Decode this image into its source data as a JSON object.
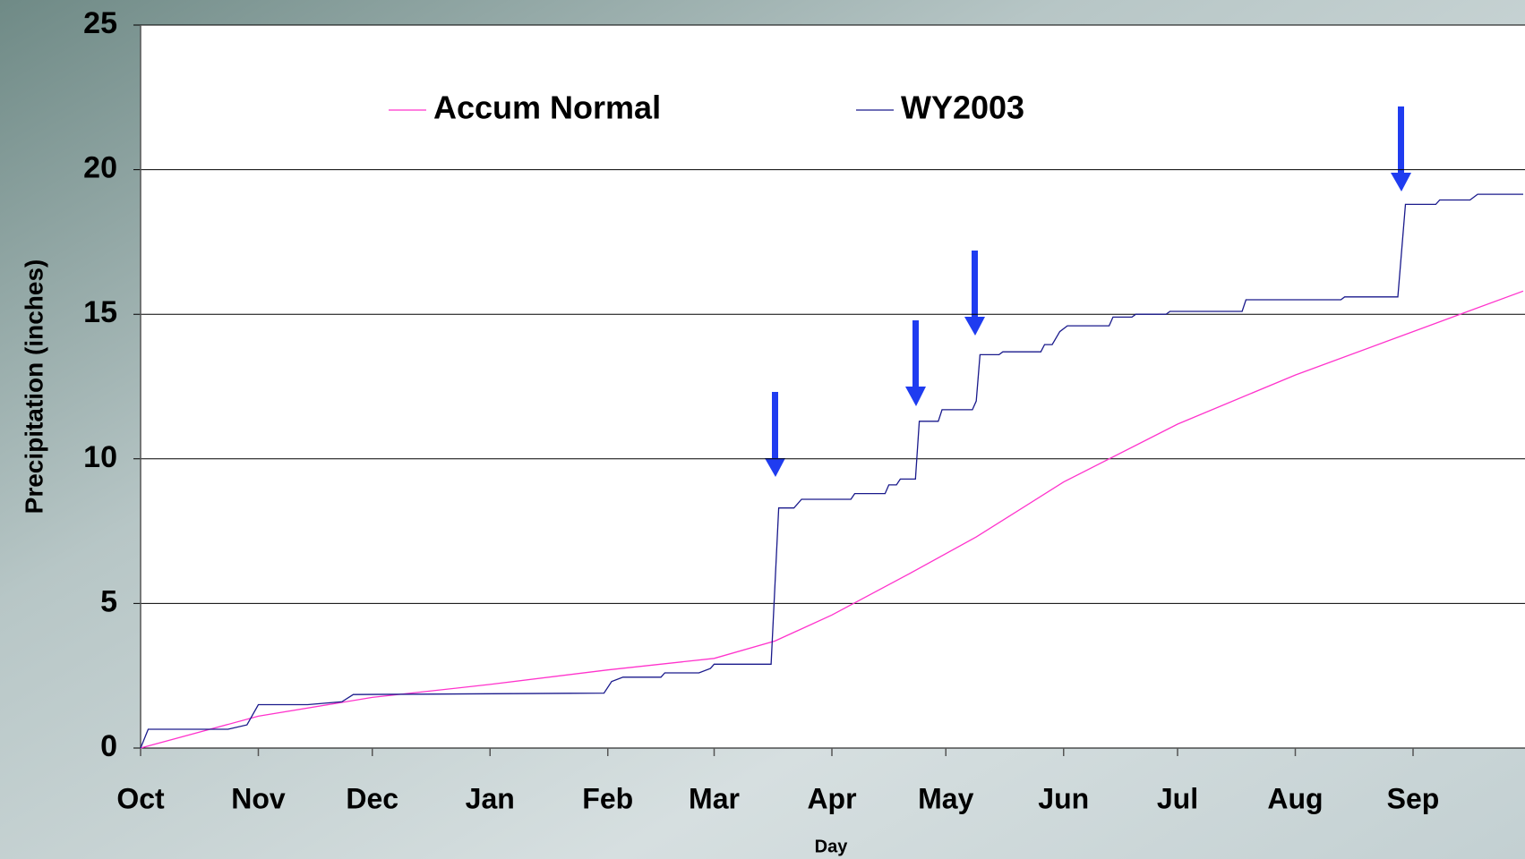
{
  "chart_data": {
    "type": "line",
    "x_label": "Day",
    "y_label": "Precipitation (inches)",
    "xlim": [
      0,
      364
    ],
    "xticks": [
      {
        "value": 0,
        "label": "Oct"
      },
      {
        "value": 31,
        "label": "Nov"
      },
      {
        "value": 61,
        "label": "Dec"
      },
      {
        "value": 92,
        "label": "Jan"
      },
      {
        "value": 123,
        "label": "Feb"
      },
      {
        "value": 151,
        "label": "Mar"
      },
      {
        "value": 182,
        "label": "Apr"
      },
      {
        "value": 212,
        "label": "May"
      },
      {
        "value": 243,
        "label": "Jun"
      },
      {
        "value": 273,
        "label": "Jul"
      },
      {
        "value": 304,
        "label": "Aug"
      },
      {
        "value": 335,
        "label": "Sep"
      }
    ],
    "ylim": [
      0,
      25
    ],
    "yticks": [
      0,
      5,
      10,
      15,
      20,
      25
    ],
    "grid": true,
    "series": [
      {
        "name": "Accum Normal",
        "color": "#ff33cc",
        "x": [
          0,
          31,
          61,
          92,
          123,
          151,
          167,
          182,
          202,
          220,
          243,
          273,
          304,
          335,
          364
        ],
        "values": [
          0,
          1.1,
          1.75,
          2.2,
          2.7,
          3.1,
          3.7,
          4.6,
          6.0,
          7.3,
          9.2,
          11.2,
          12.9,
          14.4,
          15.8
        ]
      },
      {
        "name": "WY2003",
        "color": "#1a1a8c",
        "x": [
          0,
          2,
          23,
          28,
          31,
          44,
          53,
          56,
          122,
          124,
          127,
          137,
          138,
          147,
          150,
          151,
          166,
          168,
          172,
          174,
          187,
          188,
          196,
          197,
          199,
          200,
          204,
          205,
          210,
          211,
          219,
          220,
          221,
          226,
          227,
          237,
          238,
          240,
          242,
          244,
          255,
          256,
          261,
          262,
          270,
          271,
          290,
          291,
          316,
          317,
          331,
          333,
          341,
          342,
          350,
          352,
          364
        ],
        "values": [
          0,
          0.65,
          0.65,
          0.8,
          1.5,
          1.5,
          1.6,
          1.85,
          1.9,
          2.3,
          2.45,
          2.45,
          2.6,
          2.6,
          2.75,
          2.9,
          2.9,
          8.3,
          8.3,
          8.6,
          8.6,
          8.8,
          8.8,
          9.1,
          9.1,
          9.3,
          9.3,
          11.3,
          11.3,
          11.7,
          11.7,
          12.0,
          13.6,
          13.6,
          13.7,
          13.7,
          13.95,
          13.95,
          14.4,
          14.6,
          14.6,
          14.9,
          14.9,
          15.0,
          15.0,
          15.1,
          15.1,
          15.5,
          15.5,
          15.6,
          15.6,
          18.8,
          18.8,
          18.95,
          18.95,
          19.15,
          19.15
        ]
      }
    ]
  }
}
